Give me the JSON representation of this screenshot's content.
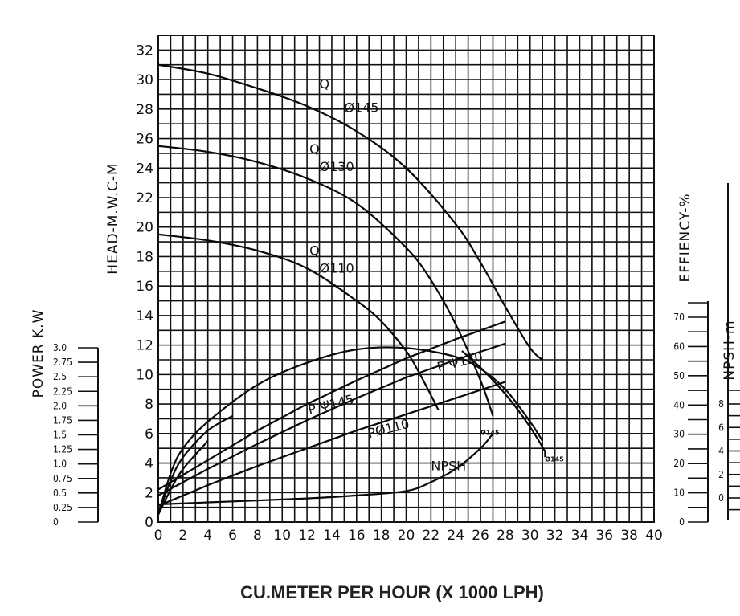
{
  "chart_data": {
    "type": "line",
    "title": "",
    "xlabel": "CU.METER PER HOUR (X 1000 LPH)",
    "ylabel": "HEAD-M.W.C-M",
    "xlim": [
      0,
      40
    ],
    "ylim": [
      0,
      33
    ],
    "x_ticks": [
      "0",
      "2",
      "4",
      "6",
      "8",
      "10",
      "12",
      "14",
      "16",
      "18",
      "20",
      "22",
      "24",
      "26",
      "28",
      "30",
      "32",
      "34",
      "36",
      "38",
      "40"
    ],
    "y_ticks": [
      "0",
      "2",
      "4",
      "6",
      "8",
      "10",
      "12",
      "14",
      "16",
      "18",
      "20",
      "22",
      "24",
      "26",
      "28",
      "30",
      "32"
    ],
    "grid": true,
    "secondary_axes": {
      "power": {
        "label": "POWER K.W",
        "ticks": [
          "3.0",
          "2.75",
          "2.5",
          "2.25",
          "2.0",
          "1.75",
          "1.5",
          "1.25",
          "1.0",
          "0.75",
          "0.5",
          "0.25",
          "0"
        ]
      },
      "efficiency": {
        "label": "EFFIENCY-%",
        "ticks": [
          "70",
          "60",
          "50",
          "40",
          "30",
          "20",
          "10",
          "0"
        ]
      },
      "npsh": {
        "label": "NPSH-m",
        "ticks": [
          "8",
          "6",
          "4",
          "2",
          "0"
        ]
      }
    },
    "series": [
      {
        "name": "Ø145",
        "label": "Q",
        "kind": "head",
        "x": [
          0,
          4,
          8,
          12,
          16,
          20,
          24,
          26,
          28,
          30,
          31
        ],
        "y": [
          31.0,
          30.4,
          29.4,
          28.2,
          26.5,
          24.0,
          20.2,
          17.6,
          14.6,
          11.8,
          11.0
        ]
      },
      {
        "name": "Ø130",
        "label": "Q",
        "kind": "head",
        "x": [
          0,
          4,
          8,
          12,
          16,
          20,
          22,
          24,
          26,
          27
        ],
        "y": [
          25.5,
          25.1,
          24.4,
          23.3,
          21.6,
          18.6,
          16.4,
          13.4,
          9.6,
          7.2
        ]
      },
      {
        "name": "Ø110",
        "label": "Q",
        "kind": "head",
        "x": [
          0,
          4,
          8,
          12,
          16,
          18,
          20,
          21,
          22,
          22.6
        ],
        "y": [
          19.5,
          19.1,
          18.4,
          17.2,
          15.0,
          13.6,
          11.6,
          10.2,
          8.6,
          7.6
        ]
      },
      {
        "name": "Ø145",
        "label": "P",
        "kind": "power",
        "x": [
          0,
          4,
          8,
          12,
          16,
          20,
          24,
          28
        ],
        "y": [
          2.2,
          4.2,
          6.2,
          8.0,
          9.6,
          11.1,
          12.4,
          13.6
        ]
      },
      {
        "name": "Ø130",
        "label": "P",
        "kind": "power",
        "x": [
          0,
          4,
          8,
          12,
          16,
          20,
          24,
          28
        ],
        "y": [
          1.8,
          3.6,
          5.3,
          6.9,
          8.4,
          9.8,
          11.0,
          12.1
        ]
      },
      {
        "name": "Ø110",
        "label": "P",
        "kind": "power",
        "x": [
          0,
          4,
          8,
          12,
          16,
          20,
          24,
          28
        ],
        "y": [
          1.1,
          2.5,
          3.8,
          5.0,
          6.2,
          7.3,
          8.4,
          9.5
        ]
      },
      {
        "name": "eff Ø145",
        "label": "",
        "kind": "efficiency",
        "x": [
          0,
          1,
          2,
          4,
          8,
          12,
          16,
          20,
          24,
          26,
          28,
          30,
          31
        ],
        "y": [
          0.5,
          3.3,
          5.0,
          6.8,
          9.3,
          10.8,
          11.7,
          11.8,
          11.2,
          10.4,
          9.0,
          6.8,
          5.5
        ]
      },
      {
        "name": "eff Ø130",
        "label": "",
        "kind": "efficiency",
        "x": [
          0,
          1,
          2,
          4,
          6
        ],
        "y": [
          0.5,
          2.8,
          4.4,
          6.2,
          7.2
        ]
      },
      {
        "name": "eff Ø110",
        "label": "",
        "kind": "efficiency",
        "x": [
          0,
          1,
          2,
          4
        ],
        "y": [
          0.5,
          2.2,
          3.6,
          5.5
        ]
      },
      {
        "name": "NPSH",
        "label": "NPSH",
        "kind": "npsh",
        "x": [
          0,
          6,
          12,
          16,
          20,
          22,
          24,
          26,
          27
        ],
        "y": [
          1.2,
          1.4,
          1.6,
          1.8,
          2.1,
          2.7,
          3.6,
          5.0,
          6.0
        ]
      }
    ],
    "annotations": {
      "q145_label": "Q",
      "q145_dia": "Ø145",
      "q130_label": "Q",
      "q130_dia": "Ø130",
      "q110_label": "Q",
      "q110_dia": "Ø110",
      "p145": "P Ψ145",
      "p130": "P Ψ130",
      "p110": "PØ110",
      "npsh": "NPSH",
      "end_a": "Ø145",
      "end_b": "Ø145"
    }
  }
}
